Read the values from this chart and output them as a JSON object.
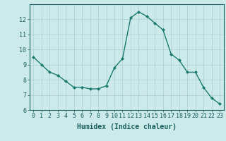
{
  "x": [
    0,
    1,
    2,
    3,
    4,
    5,
    6,
    7,
    8,
    9,
    10,
    11,
    12,
    13,
    14,
    15,
    16,
    17,
    18,
    19,
    20,
    21,
    22,
    23
  ],
  "y": [
    9.5,
    9.0,
    8.5,
    8.3,
    7.9,
    7.5,
    7.5,
    7.4,
    7.4,
    7.6,
    8.8,
    9.4,
    12.1,
    12.5,
    12.2,
    11.75,
    11.3,
    9.7,
    9.3,
    8.5,
    8.5,
    7.5,
    6.8,
    6.4
  ],
  "line_color": "#1a7a6e",
  "marker": "D",
  "marker_size": 2.0,
  "bg_color": "#cceaea",
  "grid_color": "#aacece",
  "xlabel": "Humidex (Indice chaleur)",
  "ylim": [
    6,
    13
  ],
  "xlim": [
    -0.5,
    23.5
  ],
  "yticks": [
    6,
    7,
    8,
    9,
    10,
    11,
    12
  ],
  "xticks": [
    0,
    1,
    2,
    3,
    4,
    5,
    6,
    7,
    8,
    9,
    10,
    11,
    12,
    13,
    14,
    15,
    16,
    17,
    18,
    19,
    20,
    21,
    22,
    23
  ],
  "tick_color": "#1a5f5f",
  "axis_color": "#1a5f5f",
  "label_color": "#1a5f5f",
  "xlabel_fontsize": 7.0,
  "tick_fontsize": 6.0,
  "linewidth": 1.0
}
